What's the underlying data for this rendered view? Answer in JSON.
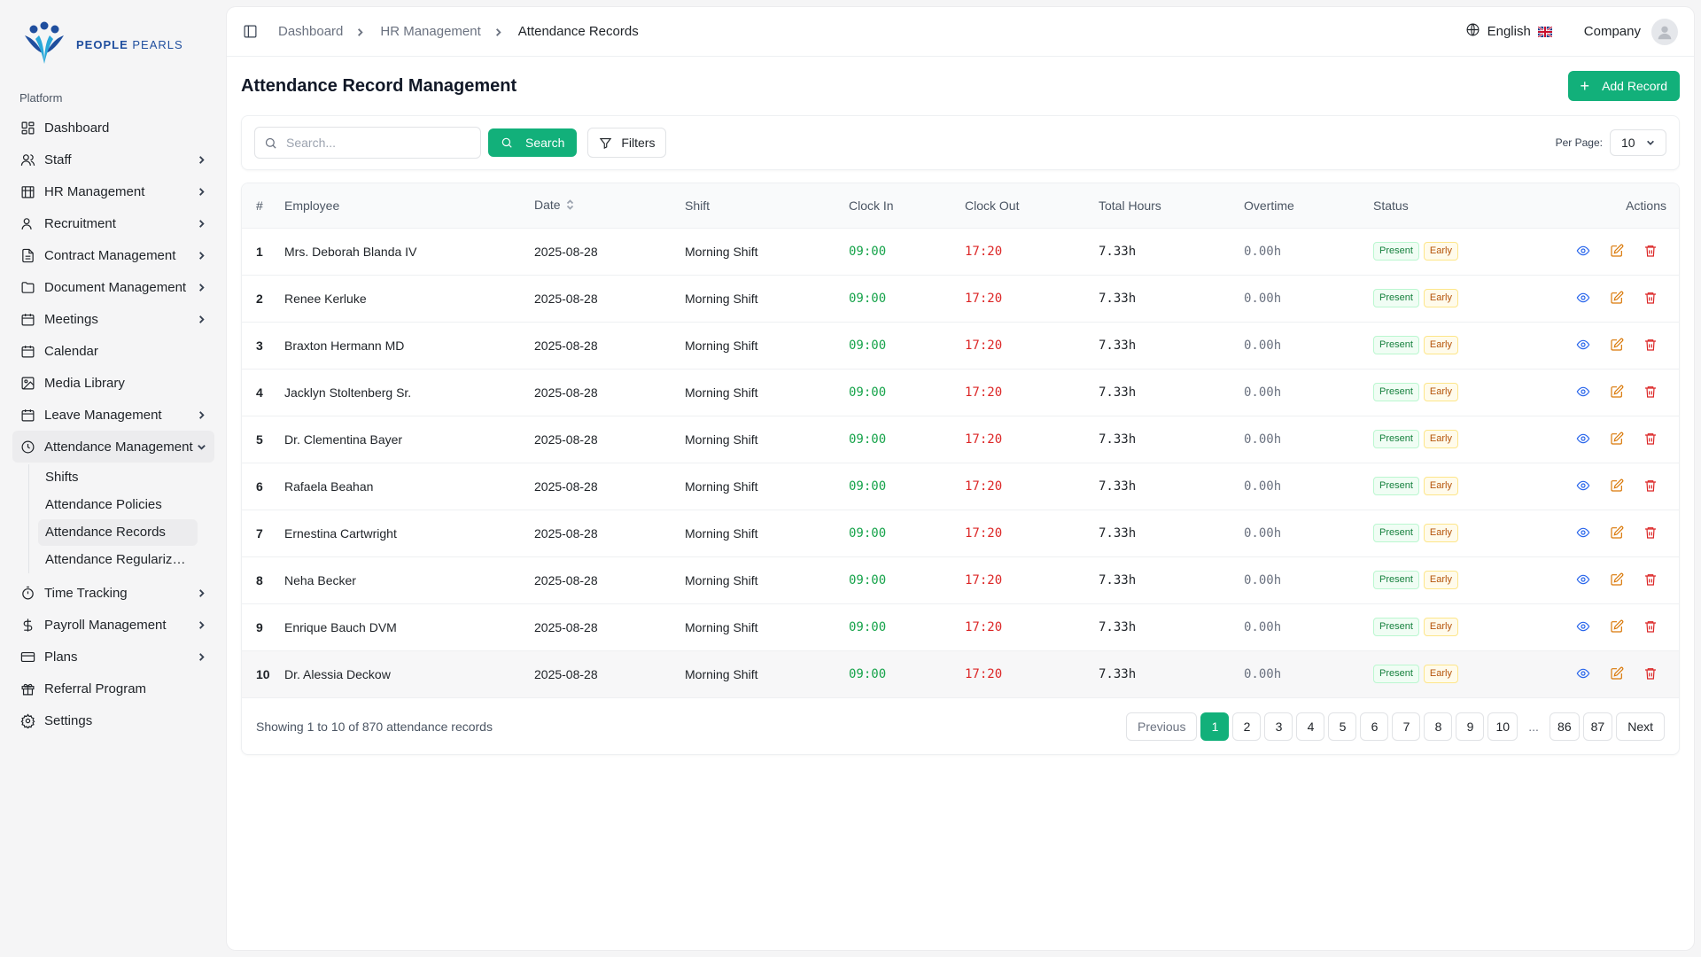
{
  "brand": {
    "name_part1": "PEOPLE",
    "name_part2": "PEARLS",
    "primary_color": "#12b07a"
  },
  "sidebar": {
    "section_label": "Platform",
    "items": [
      {
        "label": "Dashboard",
        "icon": "grid-icon",
        "has_children": false
      },
      {
        "label": "Staff",
        "icon": "users-icon",
        "has_children": true
      },
      {
        "label": "HR Management",
        "icon": "building-icon",
        "has_children": true
      },
      {
        "label": "Recruitment",
        "icon": "user-plus-icon",
        "has_children": true
      },
      {
        "label": "Contract Management",
        "icon": "file-text-icon",
        "has_children": true
      },
      {
        "label": "Document Management",
        "icon": "folder-icon",
        "has_children": true
      },
      {
        "label": "Meetings",
        "icon": "calendar-icon",
        "has_children": true
      },
      {
        "label": "Calendar",
        "icon": "calendar-icon",
        "has_children": false
      },
      {
        "label": "Media Library",
        "icon": "image-icon",
        "has_children": false
      },
      {
        "label": "Leave Management",
        "icon": "calendar-icon",
        "has_children": true
      },
      {
        "label": "Attendance Management",
        "icon": "clock-icon",
        "has_children": true,
        "open": true
      },
      {
        "label": "Time Tracking",
        "icon": "timer-icon",
        "has_children": true
      },
      {
        "label": "Payroll Management",
        "icon": "dollar-icon",
        "has_children": true
      },
      {
        "label": "Plans",
        "icon": "credit-card-icon",
        "has_children": true
      },
      {
        "label": "Referral Program",
        "icon": "gift-icon",
        "has_children": false
      },
      {
        "label": "Settings",
        "icon": "gear-icon",
        "has_children": false
      }
    ],
    "attendance_sub": [
      "Shifts",
      "Attendance Policies",
      "Attendance Records",
      "Attendance Regularizat..."
    ]
  },
  "topbar": {
    "breadcrumbs": [
      "Dashboard",
      "HR Management",
      "Attendance Records"
    ],
    "language": "English",
    "company": "Company"
  },
  "page": {
    "title": "Attendance Record Management",
    "add_button": "Add Record"
  },
  "toolbar": {
    "search_placeholder": "Search...",
    "search_button": "Search",
    "filters_button": "Filters",
    "per_page_label": "Per Page:",
    "per_page_value": "10"
  },
  "table": {
    "columns": [
      "#",
      "Employee",
      "Date",
      "Shift",
      "Clock In",
      "Clock Out",
      "Total Hours",
      "Overtime",
      "Status",
      "Actions"
    ],
    "rows": [
      {
        "n": "1",
        "employee": "Mrs. Deborah Blanda IV",
        "date": "2025-08-28",
        "shift": "Morning Shift",
        "in": "09:00",
        "out": "17:20",
        "total": "7.33h",
        "ot": "0.00h",
        "status": "Present",
        "flag": "Early"
      },
      {
        "n": "2",
        "employee": "Renee Kerluke",
        "date": "2025-08-28",
        "shift": "Morning Shift",
        "in": "09:00",
        "out": "17:20",
        "total": "7.33h",
        "ot": "0.00h",
        "status": "Present",
        "flag": "Early"
      },
      {
        "n": "3",
        "employee": "Braxton Hermann MD",
        "date": "2025-08-28",
        "shift": "Morning Shift",
        "in": "09:00",
        "out": "17:20",
        "total": "7.33h",
        "ot": "0.00h",
        "status": "Present",
        "flag": "Early"
      },
      {
        "n": "4",
        "employee": "Jacklyn Stoltenberg Sr.",
        "date": "2025-08-28",
        "shift": "Morning Shift",
        "in": "09:00",
        "out": "17:20",
        "total": "7.33h",
        "ot": "0.00h",
        "status": "Present",
        "flag": "Early"
      },
      {
        "n": "5",
        "employee": "Dr. Clementina Bayer",
        "date": "2025-08-28",
        "shift": "Morning Shift",
        "in": "09:00",
        "out": "17:20",
        "total": "7.33h",
        "ot": "0.00h",
        "status": "Present",
        "flag": "Early"
      },
      {
        "n": "6",
        "employee": "Rafaela Beahan",
        "date": "2025-08-28",
        "shift": "Morning Shift",
        "in": "09:00",
        "out": "17:20",
        "total": "7.33h",
        "ot": "0.00h",
        "status": "Present",
        "flag": "Early"
      },
      {
        "n": "7",
        "employee": "Ernestina Cartwright",
        "date": "2025-08-28",
        "shift": "Morning Shift",
        "in": "09:00",
        "out": "17:20",
        "total": "7.33h",
        "ot": "0.00h",
        "status": "Present",
        "flag": "Early"
      },
      {
        "n": "8",
        "employee": "Neha Becker",
        "date": "2025-08-28",
        "shift": "Morning Shift",
        "in": "09:00",
        "out": "17:20",
        "total": "7.33h",
        "ot": "0.00h",
        "status": "Present",
        "flag": "Early"
      },
      {
        "n": "9",
        "employee": "Enrique Bauch DVM",
        "date": "2025-08-28",
        "shift": "Morning Shift",
        "in": "09:00",
        "out": "17:20",
        "total": "7.33h",
        "ot": "0.00h",
        "status": "Present",
        "flag": "Early"
      },
      {
        "n": "10",
        "employee": "Dr. Alessia Deckow",
        "date": "2025-08-28",
        "shift": "Morning Shift",
        "in": "09:00",
        "out": "17:20",
        "total": "7.33h",
        "ot": "0.00h",
        "status": "Present",
        "flag": "Early"
      }
    ]
  },
  "footer": {
    "showing_text": "Showing 1 to 10 of 870 attendance records",
    "previous": "Previous",
    "next": "Next",
    "pages": [
      "1",
      "2",
      "3",
      "4",
      "5",
      "6",
      "7",
      "8",
      "9",
      "10",
      "...",
      "86",
      "87"
    ],
    "current_page": "1"
  }
}
